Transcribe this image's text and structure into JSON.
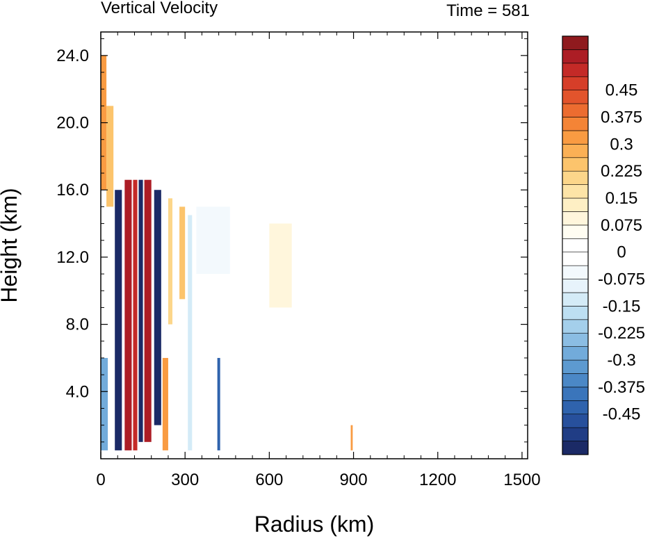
{
  "chart_data": {
    "type": "heatmap",
    "title_left": "Vertical Velocity",
    "title_right": "Time = 581",
    "xlabel": "Radius (km)",
    "ylabel": "Height (km)",
    "xlim": [
      0,
      1520
    ],
    "ylim": [
      0,
      25.4
    ],
    "xticks": [
      0,
      300,
      600,
      900,
      1200,
      1500
    ],
    "xtick_labels": [
      "0",
      "300",
      "600",
      "900",
      "1200",
      "1500"
    ],
    "yticks": [
      4,
      8,
      12,
      16,
      20,
      24
    ],
    "ytick_labels": [
      "4.0",
      "8.0",
      "12.0",
      "16.0",
      "20.0",
      "24.0"
    ],
    "colorbar": {
      "levels": [
        -0.5625,
        -0.525,
        -0.4875,
        -0.45,
        -0.4125,
        -0.375,
        -0.3375,
        -0.3,
        -0.2625,
        -0.225,
        -0.1875,
        -0.15,
        -0.1125,
        -0.075,
        -0.0375,
        0,
        0.0375,
        0.075,
        0.1125,
        0.15,
        0.1875,
        0.225,
        0.2625,
        0.3,
        0.3375,
        0.375,
        0.4125,
        0.45,
        0.4875,
        0.525,
        0.5625
      ],
      "tick_values": [
        -0.45,
        -0.375,
        -0.3,
        -0.225,
        -0.15,
        -0.075,
        0,
        0.075,
        0.15,
        0.225,
        0.3,
        0.375,
        0.45
      ],
      "tick_labels": [
        "-0.45",
        "-0.375",
        "-0.3",
        "-0.225",
        "-0.15",
        "-0.075",
        "0",
        "0.075",
        "0.15",
        "0.225",
        "0.3",
        "0.375",
        "0.45"
      ],
      "colors": [
        "#1b2a66",
        "#203d85",
        "#27509c",
        "#2f63ad",
        "#3a75bb",
        "#4b88c6",
        "#5d9ad0",
        "#72abda",
        "#8bbde3",
        "#a4cfeb",
        "#bddff2",
        "#d4ebf7",
        "#e7f3fb",
        "#f3f9fd",
        "#ffffff",
        "#ffffff",
        "#fffdf2",
        "#fff6dc",
        "#feefc4",
        "#fde4a7",
        "#fcd68a",
        "#fcc46c",
        "#fbb055",
        "#f99b42",
        "#f48436",
        "#ec6c30",
        "#e2542c",
        "#d63e29",
        "#c42a27",
        "#ac1d25",
        "#8f1a1e"
      ]
    },
    "features": [
      {
        "r_min": 50,
        "r_max": 75,
        "h_min": 0.5,
        "h_max": 16.0,
        "w": -0.55
      },
      {
        "r_min": 85,
        "r_max": 110,
        "h_min": 0.5,
        "h_max": 16.6,
        "w": 0.55
      },
      {
        "r_min": 115,
        "r_max": 130,
        "h_min": 0.5,
        "h_max": 16.6,
        "w": 0.5
      },
      {
        "r_min": 135,
        "r_max": 150,
        "h_min": 1.0,
        "h_max": 16.6,
        "w": -0.55
      },
      {
        "r_min": 155,
        "r_max": 180,
        "h_min": 1.0,
        "h_max": 16.6,
        "w": 0.55
      },
      {
        "r_min": 190,
        "r_max": 215,
        "h_min": 2.0,
        "h_max": 16.0,
        "w": -0.55
      },
      {
        "r_min": 220,
        "r_max": 240,
        "h_min": 0.5,
        "h_max": 6.0,
        "w": 0.3
      },
      {
        "r_min": 240,
        "r_max": 255,
        "h_min": 8.0,
        "h_max": 15.5,
        "w": 0.2
      },
      {
        "r_min": 280,
        "r_max": 300,
        "h_min": 9.5,
        "h_max": 15.0,
        "w": 0.25
      },
      {
        "r_min": 310,
        "r_max": 325,
        "h_min": 0.5,
        "h_max": 14.5,
        "w": -0.15
      },
      {
        "r_min": 415,
        "r_max": 425,
        "h_min": 0.5,
        "h_max": 6.0,
        "w": -0.45
      },
      {
        "r_min": 0,
        "r_max": 20,
        "h_min": 16.0,
        "h_max": 24.0,
        "w": 0.3
      },
      {
        "r_min": 20,
        "r_max": 45,
        "h_min": 15.0,
        "h_max": 21.0,
        "w": 0.25
      },
      {
        "r_min": 0,
        "r_max": 25,
        "h_min": 0.5,
        "h_max": 6.0,
        "w": -0.3
      },
      {
        "r_min": 600,
        "r_max": 680,
        "h_min": 9.0,
        "h_max": 14.0,
        "w": 0.075
      },
      {
        "r_min": 340,
        "r_max": 460,
        "h_min": 11.0,
        "h_max": 15.0,
        "w": -0.075
      },
      {
        "r_min": 890,
        "r_max": 897,
        "h_min": 0.5,
        "h_max": 2.0,
        "w": 0.3
      }
    ]
  }
}
